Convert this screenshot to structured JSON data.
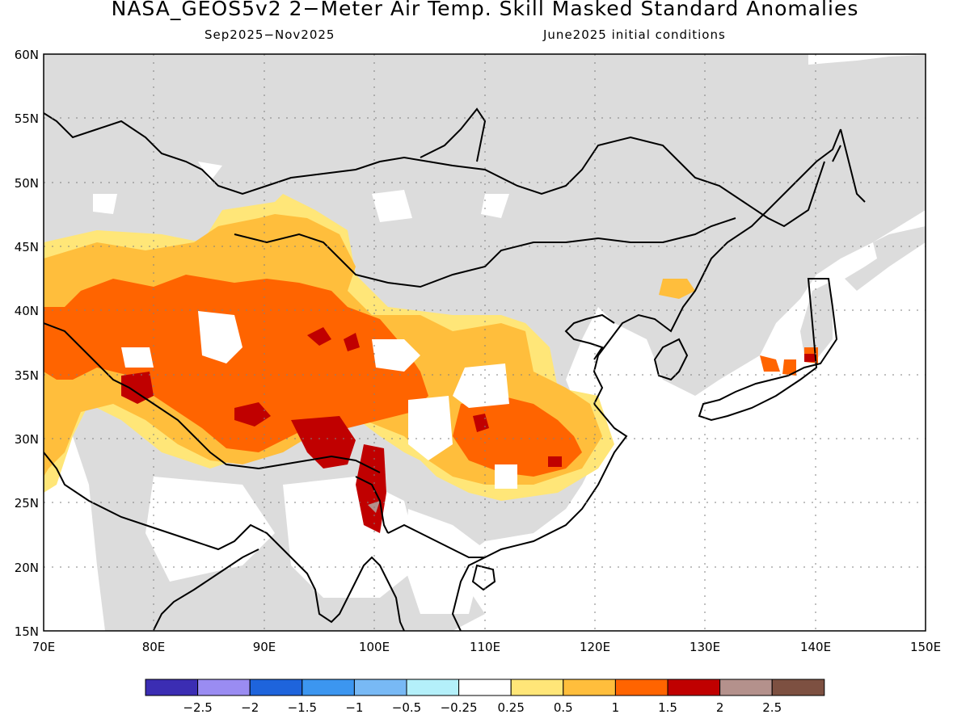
{
  "title": "NASA_GEOS5v2 2−Meter Air Temp. Skill Masked Standard Anomalies",
  "subtitle_left": "Sep2025−Nov2025",
  "subtitle_right": "June2025 initial conditions",
  "map": {
    "lat_labels": [
      "60N",
      "55N",
      "50N",
      "45N",
      "40N",
      "35N",
      "30N",
      "25N",
      "20N",
      "15N"
    ],
    "lon_labels": [
      "70E",
      "80E",
      "90E",
      "100E",
      "110E",
      "120E",
      "130E",
      "140E",
      "150E"
    ],
    "lat_range": [
      15,
      60
    ],
    "lon_range": [
      70,
      150
    ],
    "masked_color": "#dcdcdc",
    "grid": true
  },
  "colorbar": {
    "colors": [
      "#3b2db3",
      "#9a8cf2",
      "#1e64dc",
      "#3c96f0",
      "#78b9f5",
      "#b4f0fa",
      "#ffffff",
      "#ffe678",
      "#ffbe3c",
      "#ff6400",
      "#c00000",
      "#b4918c",
      "#7d5041"
    ],
    "tick_labels": [
      "−2.5",
      "−2",
      "−1.5",
      "−1",
      "−0.5",
      "−0.25",
      "0.25",
      "0.5",
      "1",
      "1.5",
      "2",
      "2.5"
    ]
  }
}
